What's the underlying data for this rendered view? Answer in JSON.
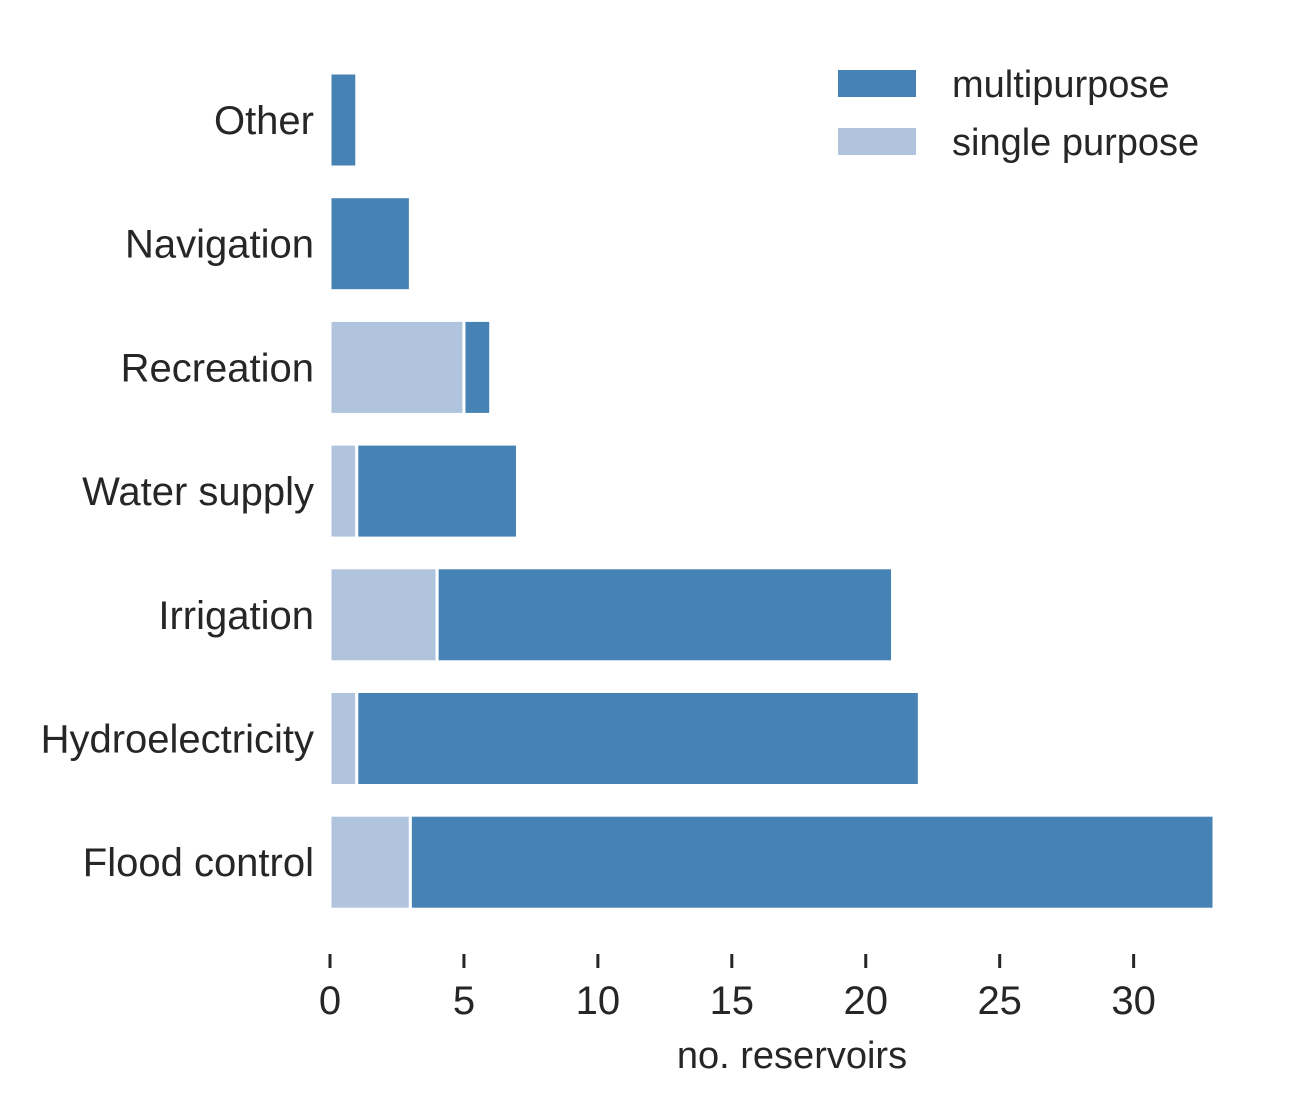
{
  "chart_data": {
    "type": "bar",
    "orientation": "horizontal",
    "stacked": true,
    "categories": [
      "Other",
      "Navigation",
      "Recreation",
      "Water supply",
      "Irrigation",
      "Hydroelectricity",
      "Flood control"
    ],
    "series": [
      {
        "name": "single purpose",
        "values": [
          0,
          0,
          5,
          1,
          4,
          1,
          3
        ],
        "color": "#b0c4de"
      },
      {
        "name": "multipurpose",
        "values": [
          1,
          3,
          1,
          6,
          17,
          21,
          30
        ],
        "color": "#4682b4"
      }
    ],
    "xlabel": "no. reservoirs",
    "ylabel": "",
    "xlim": [
      0,
      33
    ],
    "xticks": [
      0,
      5,
      10,
      15,
      20,
      25,
      30
    ],
    "grid": false,
    "legend": {
      "placement": "top-right",
      "entries": [
        "multipurpose",
        "single purpose"
      ]
    }
  }
}
